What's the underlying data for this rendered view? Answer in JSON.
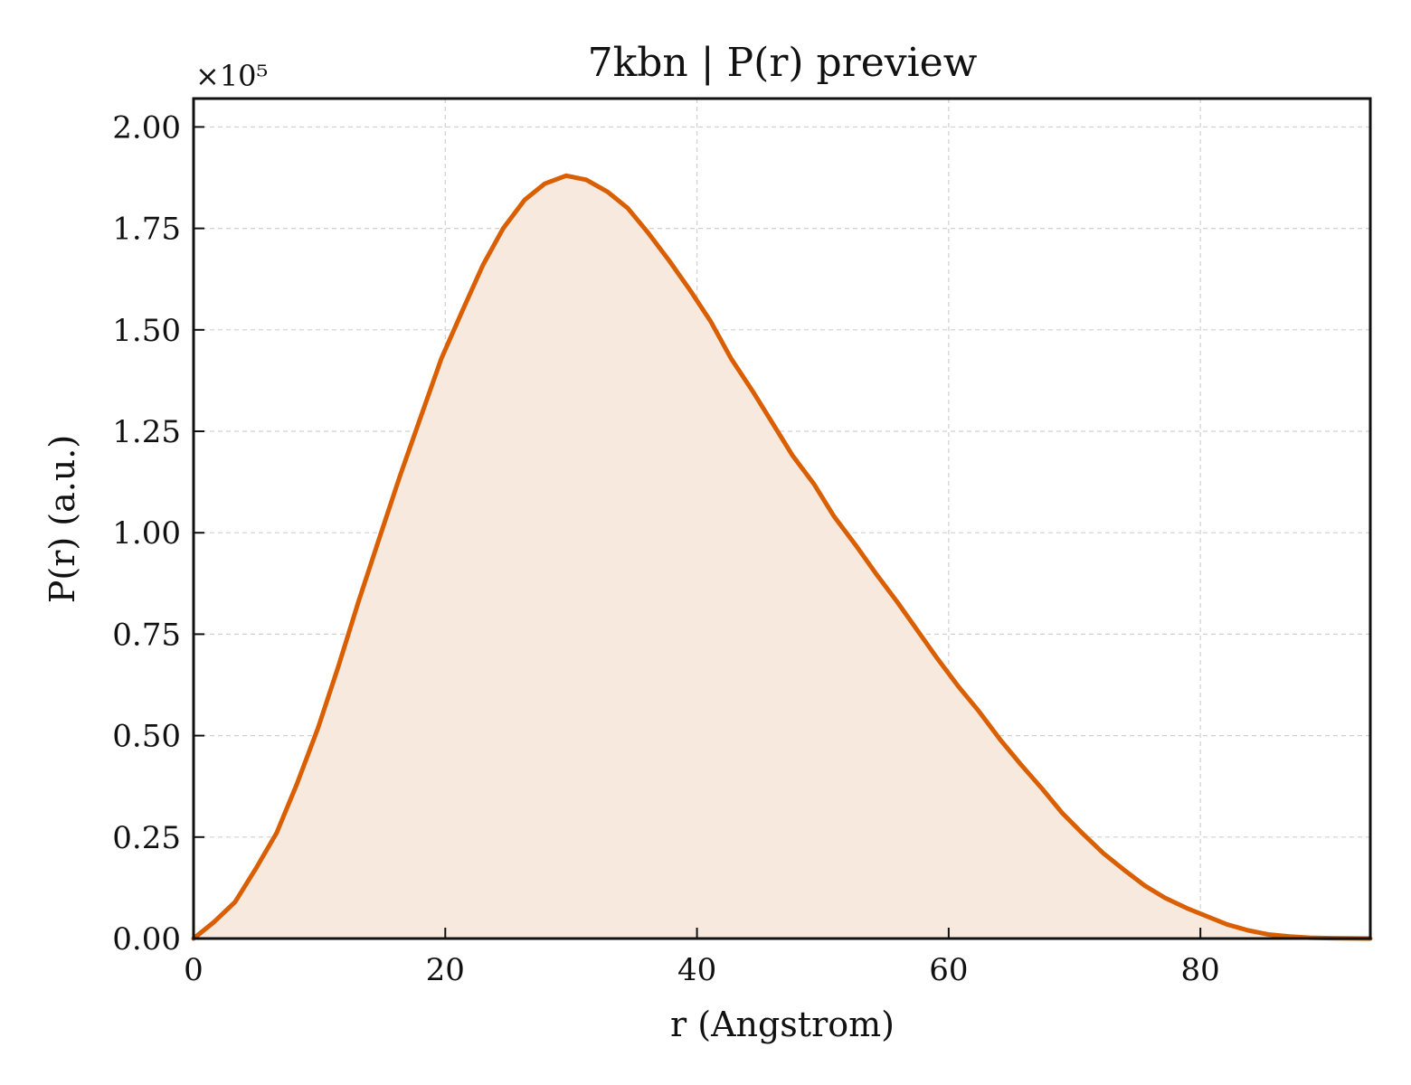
{
  "chart_data": {
    "type": "area",
    "title": "7kbn | P(r) preview",
    "xlabel": "r (Angstrom)",
    "ylabel": "P(r) (a.u.)",
    "y_offset_label": "×10⁵",
    "xlim": [
      0,
      93.5
    ],
    "ylim": [
      0,
      2.07
    ],
    "x_ticks": [
      0,
      20,
      40,
      60,
      80
    ],
    "x_tick_labels": [
      "0",
      "20",
      "40",
      "60",
      "80"
    ],
    "y_ticks": [
      0,
      0.25,
      0.5,
      0.75,
      1.0,
      1.25,
      1.5,
      1.75,
      2.0
    ],
    "y_tick_labels": [
      "0.00",
      "0.25",
      "0.50",
      "0.75",
      "1.00",
      "1.25",
      "1.50",
      "1.75",
      "2.00"
    ],
    "grid": true,
    "colors": {
      "line": "#d95f02",
      "fill": "#f8e9de"
    },
    "series": [
      {
        "x": [
          0,
          1.6,
          3.3,
          4.9,
          6.6,
          8.2,
          9.9,
          11.5,
          13.1,
          14.8,
          16.4,
          18.1,
          19.7,
          21.4,
          23.0,
          24.6,
          26.3,
          27.9,
          29.6,
          31.2,
          32.9,
          34.5,
          36.1,
          37.8,
          39.4,
          41.1,
          42.7,
          44.4,
          46.0,
          47.6,
          49.3,
          50.9,
          52.6,
          54.2,
          55.9,
          57.5,
          59.1,
          60.8,
          62.4,
          64.1,
          65.7,
          67.4,
          69.0,
          70.6,
          72.3,
          73.9,
          75.6,
          77.2,
          78.9,
          80.5,
          82.1,
          83.8,
          85.4,
          87.1,
          88.7,
          90.4,
          93.5
        ],
        "y": [
          0.0,
          0.04,
          0.09,
          0.17,
          0.26,
          0.38,
          0.52,
          0.67,
          0.83,
          0.99,
          1.14,
          1.29,
          1.43,
          1.55,
          1.66,
          1.75,
          1.82,
          1.86,
          1.88,
          1.87,
          1.84,
          1.8,
          1.74,
          1.67,
          1.6,
          1.52,
          1.43,
          1.35,
          1.27,
          1.19,
          1.12,
          1.04,
          0.97,
          0.9,
          0.83,
          0.76,
          0.69,
          0.62,
          0.56,
          0.49,
          0.43,
          0.37,
          0.31,
          0.26,
          0.21,
          0.17,
          0.13,
          0.1,
          0.075,
          0.055,
          0.035,
          0.02,
          0.01,
          0.005,
          0.002,
          0.001,
          0.0
        ]
      }
    ]
  }
}
